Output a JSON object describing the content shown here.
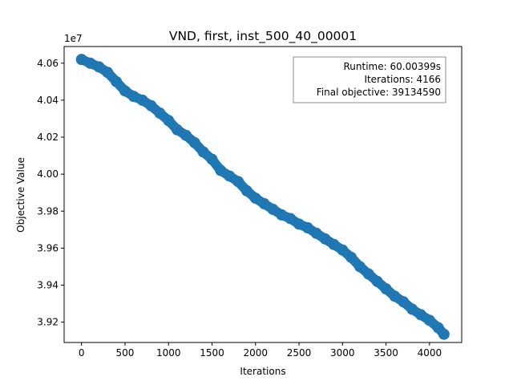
{
  "chart_data": {
    "type": "scatter",
    "title": "VND, first, inst_500_40_00001",
    "xlabel": "Iterations",
    "ylabel": "Objective Value",
    "y_offset_label": "1e7",
    "xlim": [
      -200,
      4370
    ],
    "ylim": [
      39090000,
      40690000
    ],
    "x_ticks": [
      0,
      500,
      1000,
      1500,
      2000,
      2500,
      3000,
      3500,
      4000
    ],
    "x_tick_labels": [
      "0",
      "500",
      "1000",
      "1500",
      "2000",
      "2500",
      "3000",
      "3500",
      "4000"
    ],
    "y_ticks": [
      39200000,
      39400000,
      39600000,
      39800000,
      40000000,
      40200000,
      40400000,
      40600000
    ],
    "y_tick_labels": [
      "3.92",
      "3.94",
      "3.96",
      "3.98",
      "4.00",
      "4.02",
      "4.04",
      "4.06"
    ],
    "grid": false,
    "marker_color": "#1f77b4",
    "series": [
      {
        "name": "",
        "x": [
          0,
          100,
          200,
          300,
          400,
          500,
          600,
          700,
          800,
          900,
          1000,
          1100,
          1200,
          1300,
          1400,
          1500,
          1600,
          1700,
          1800,
          1900,
          2000,
          2100,
          2200,
          2300,
          2400,
          2500,
          2600,
          2700,
          2800,
          2900,
          3000,
          3100,
          3200,
          3300,
          3400,
          3500,
          3600,
          3700,
          3800,
          3900,
          4000,
          4100,
          4166
        ],
        "y": [
          40620000,
          40600000,
          40580000,
          40550000,
          40500000,
          40450000,
          40420000,
          40400000,
          40370000,
          40330000,
          40290000,
          40240000,
          40210000,
          40170000,
          40120000,
          40080000,
          40020000,
          39990000,
          39960000,
          39910000,
          39870000,
          39840000,
          39810000,
          39780000,
          39760000,
          39730000,
          39710000,
          39680000,
          39650000,
          39620000,
          39590000,
          39550000,
          39500000,
          39460000,
          39420000,
          39380000,
          39340000,
          39310000,
          39270000,
          39240000,
          39210000,
          39170000,
          39134590
        ]
      }
    ]
  },
  "legend": {
    "runtime": "Runtime: 60.00399s",
    "iterations": "Iterations: 4166",
    "final_objective": "Final objective: 39134590"
  }
}
